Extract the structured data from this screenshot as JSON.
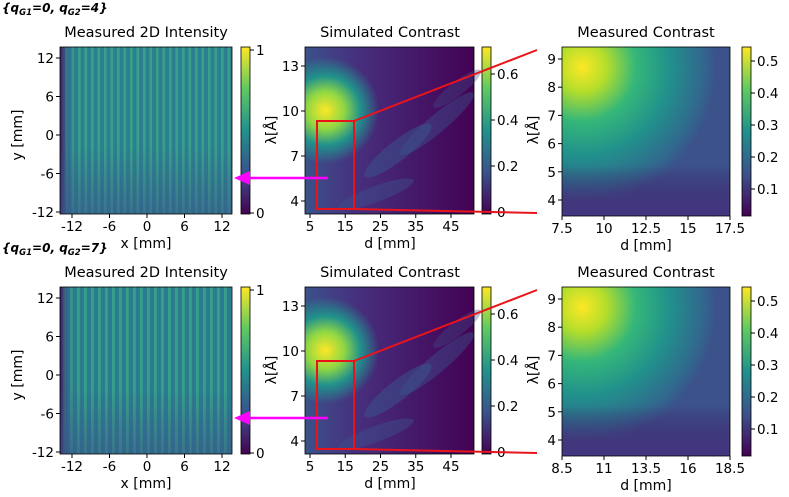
{
  "rows": [
    {
      "label_prefix": "{q",
      "label_sub1": "G1",
      "label_mid": "=0, q",
      "label_sub2": "G2",
      "label_suffix": "=4}",
      "intensity": {
        "title": "Measured 2D Intensity",
        "xlabel": "x [mm]",
        "ylabel": "y [mm]",
        "xticks": [
          "-12",
          "-6",
          "0",
          "6",
          "12"
        ],
        "yticks": [
          "12",
          "6",
          "0",
          "-6",
          "-12"
        ],
        "cbar_ticks": [
          "1",
          "0"
        ]
      },
      "simulated": {
        "title": "Simulated Contrast",
        "xlabel": "d [mm]",
        "ylabel": "λ[Å]",
        "xticks": [
          "5",
          "15",
          "25",
          "35",
          "45"
        ],
        "yticks": [
          "13",
          "10",
          "7",
          "4"
        ],
        "cbar_ticks": [
          "0.6",
          "0.4",
          "0.2",
          "0"
        ]
      },
      "measured": {
        "title": "Measured Contrast",
        "xlabel": "d [mm]",
        "ylabel": "λ[Å]",
        "xticks": [
          "7.5",
          "10",
          "12.5",
          "15",
          "17.5"
        ],
        "yticks": [
          "9",
          "8",
          "7",
          "6",
          "5",
          "4"
        ],
        "cbar_ticks": [
          "0.5",
          "0.4",
          "0.3",
          "0.2",
          "0.1"
        ]
      }
    },
    {
      "label_prefix": "{q",
      "label_sub1": "G1",
      "label_mid": "=0, q",
      "label_sub2": "G2",
      "label_suffix": "=7}",
      "intensity": {
        "title": "Measured 2D Intensity",
        "xlabel": "x [mm]",
        "ylabel": "y [mm]",
        "xticks": [
          "-12",
          "-6",
          "0",
          "6",
          "12"
        ],
        "yticks": [
          "12",
          "6",
          "0",
          "-6",
          "-12"
        ],
        "cbar_ticks": [
          "1",
          "0"
        ]
      },
      "simulated": {
        "title": "Simulated Contrast",
        "xlabel": "d [mm]",
        "ylabel": "λ[Å]",
        "xticks": [
          "5",
          "15",
          "25",
          "35",
          "45"
        ],
        "yticks": [
          "13",
          "10",
          "7",
          "4"
        ],
        "cbar_ticks": [
          "0.6",
          "0.4",
          "0.2",
          "0"
        ]
      },
      "measured": {
        "title": "Measured Contrast",
        "xlabel": "d [mm]",
        "ylabel": "λ[Å]",
        "xticks": [
          "8.5",
          "11",
          "13.5",
          "16",
          "18.5"
        ],
        "yticks": [
          "9",
          "8",
          "7",
          "6",
          "5",
          "4"
        ],
        "cbar_ticks": [
          "0.5",
          "0.4",
          "0.3",
          "0.2",
          "0.1"
        ]
      }
    }
  ],
  "colors": {
    "viridis_dark": "#440154",
    "viridis_blue": "#3b528b",
    "viridis_teal": "#21918c",
    "viridis_green": "#5ec962",
    "viridis_yellow": "#fde725",
    "zoom_box": "#e8141c",
    "arrow": "#ff00ff"
  },
  "chart_data": [
    {
      "type": "heatmap",
      "title": "Measured 2D Intensity",
      "xlabel": "x [mm]",
      "ylabel": "y [mm]",
      "xlim": [
        -13,
        13
      ],
      "ylim": [
        -13,
        13
      ],
      "colorbar_range": [
        0,
        1
      ],
      "panel": "row 1"
    },
    {
      "type": "heatmap",
      "title": "Simulated Contrast",
      "xlabel": "d [mm]",
      "ylabel": "λ[Å]",
      "xlim": [
        5,
        50
      ],
      "ylim": [
        3,
        14
      ],
      "colorbar_range": [
        0,
        0.65
      ],
      "zoom_region": {
        "d": [
          7.5,
          17.5
        ],
        "lambda": [
          3.5,
          9.2
        ]
      },
      "panel": "row 1"
    },
    {
      "type": "heatmap",
      "title": "Measured Contrast",
      "xlabel": "d [mm]",
      "ylabel": "λ[Å]",
      "xlim": [
        7.5,
        17.5
      ],
      "ylim": [
        3.5,
        9.2
      ],
      "colorbar_range": [
        0.02,
        0.53
      ],
      "panel": "row 1"
    },
    {
      "type": "heatmap",
      "title": "Measured 2D Intensity",
      "xlabel": "x [mm]",
      "ylabel": "y [mm]",
      "xlim": [
        -13,
        13
      ],
      "ylim": [
        -13,
        13
      ],
      "colorbar_range": [
        0,
        1
      ],
      "panel": "row 2"
    },
    {
      "type": "heatmap",
      "title": "Simulated Contrast",
      "xlabel": "d [mm]",
      "ylabel": "λ[Å]",
      "xlim": [
        5,
        50
      ],
      "ylim": [
        3,
        14
      ],
      "colorbar_range": [
        0,
        0.65
      ],
      "zoom_region": {
        "d": [
          8.5,
          18.5
        ],
        "lambda": [
          3.5,
          9.2
        ]
      },
      "panel": "row 2"
    },
    {
      "type": "heatmap",
      "title": "Measured Contrast",
      "xlabel": "d [mm]",
      "ylabel": "λ[Å]",
      "xlim": [
        8.5,
        18.5
      ],
      "ylim": [
        3.5,
        9.2
      ],
      "colorbar_range": [
        0.02,
        0.5
      ],
      "panel": "row 2"
    }
  ]
}
